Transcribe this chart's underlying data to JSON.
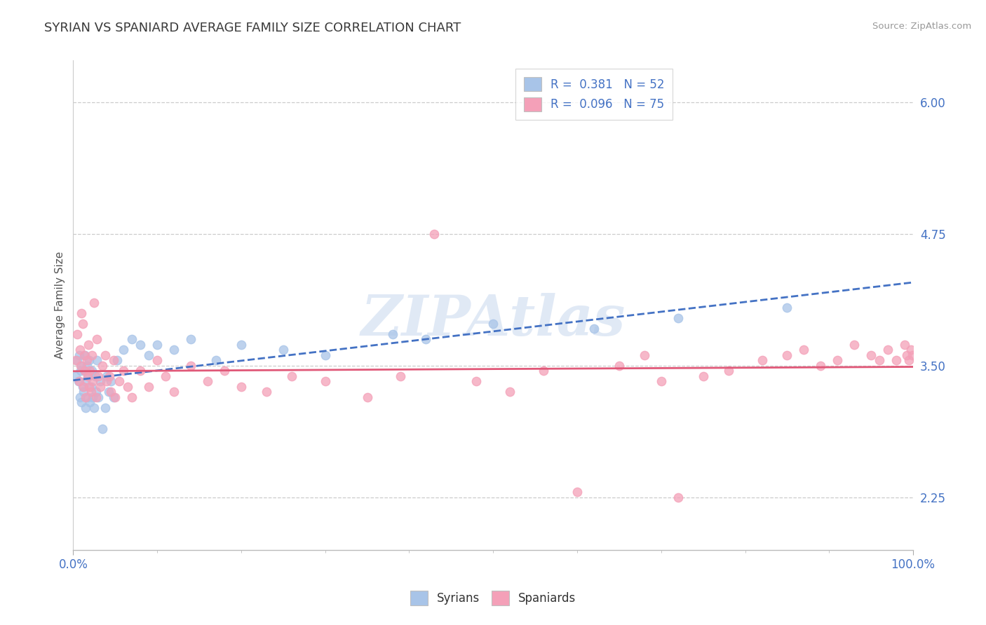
{
  "title": "SYRIAN VS SPANIARD AVERAGE FAMILY SIZE CORRELATION CHART",
  "source": "Source: ZipAtlas.com",
  "ylabel": "Average Family Size",
  "xlim": [
    0.0,
    1.0
  ],
  "ylim": [
    1.75,
    6.4
  ],
  "yticks": [
    2.25,
    3.5,
    4.75,
    6.0
  ],
  "xticks": [
    0.0,
    1.0
  ],
  "xticklabels": [
    "0.0%",
    "100.0%"
  ],
  "yticklabels": [
    "2.25",
    "3.50",
    "4.75",
    "6.00"
  ],
  "title_color": "#3a3a3a",
  "title_fontsize": 13,
  "axis_color": "#4472c4",
  "watermark": "ZIPAtlas",
  "syrian_color": "#a8c4e8",
  "spaniard_color": "#f4a0b8",
  "syrian_line_color": "#4472c4",
  "spaniard_line_color": "#e05878",
  "syrians_x": [
    0.003,
    0.005,
    0.006,
    0.007,
    0.008,
    0.009,
    0.01,
    0.01,
    0.011,
    0.012,
    0.013,
    0.014,
    0.015,
    0.015,
    0.016,
    0.017,
    0.018,
    0.019,
    0.02,
    0.021,
    0.022,
    0.023,
    0.025,
    0.026,
    0.027,
    0.028,
    0.03,
    0.032,
    0.035,
    0.038,
    0.04,
    0.042,
    0.045,
    0.048,
    0.052,
    0.06,
    0.07,
    0.08,
    0.09,
    0.1,
    0.12,
    0.14,
    0.17,
    0.2,
    0.25,
    0.3,
    0.38,
    0.42,
    0.5,
    0.62,
    0.72,
    0.85
  ],
  "syrians_y": [
    3.4,
    3.55,
    3.35,
    3.6,
    3.2,
    3.45,
    3.15,
    3.5,
    3.3,
    3.25,
    3.45,
    3.6,
    3.1,
    3.35,
    3.5,
    3.2,
    3.4,
    3.55,
    3.15,
    3.3,
    3.45,
    3.2,
    3.1,
    3.4,
    3.25,
    3.55,
    3.2,
    3.35,
    2.9,
    3.1,
    3.4,
    3.25,
    3.35,
    3.2,
    3.55,
    3.65,
    3.75,
    3.7,
    3.6,
    3.7,
    3.65,
    3.75,
    3.55,
    3.7,
    3.65,
    3.6,
    3.8,
    3.75,
    3.9,
    3.85,
    3.95,
    4.05
  ],
  "spaniards_x": [
    0.003,
    0.005,
    0.007,
    0.008,
    0.009,
    0.01,
    0.011,
    0.012,
    0.013,
    0.014,
    0.015,
    0.016,
    0.017,
    0.018,
    0.019,
    0.02,
    0.021,
    0.022,
    0.023,
    0.025,
    0.027,
    0.028,
    0.03,
    0.032,
    0.035,
    0.038,
    0.04,
    0.043,
    0.045,
    0.048,
    0.05,
    0.055,
    0.06,
    0.065,
    0.07,
    0.08,
    0.09,
    0.1,
    0.11,
    0.12,
    0.14,
    0.16,
    0.18,
    0.2,
    0.23,
    0.26,
    0.3,
    0.35,
    0.39,
    0.43,
    0.48,
    0.52,
    0.56,
    0.6,
    0.65,
    0.68,
    0.7,
    0.72,
    0.75,
    0.78,
    0.82,
    0.85,
    0.87,
    0.89,
    0.91,
    0.93,
    0.95,
    0.96,
    0.97,
    0.98,
    0.99,
    0.992,
    0.995,
    0.997,
    0.999
  ],
  "spaniards_y": [
    3.55,
    3.8,
    3.35,
    3.65,
    3.5,
    4.0,
    3.9,
    3.3,
    3.6,
    3.45,
    3.2,
    3.55,
    3.4,
    3.7,
    3.3,
    3.45,
    3.25,
    3.6,
    3.35,
    4.1,
    3.2,
    3.75,
    3.4,
    3.3,
    3.5,
    3.6,
    3.35,
    3.4,
    3.25,
    3.55,
    3.2,
    3.35,
    3.45,
    3.3,
    3.2,
    3.45,
    3.3,
    3.55,
    3.4,
    3.25,
    3.5,
    3.35,
    3.45,
    3.3,
    3.25,
    3.4,
    3.35,
    3.2,
    3.4,
    4.75,
    3.35,
    3.25,
    3.45,
    2.3,
    3.5,
    3.6,
    3.35,
    2.25,
    3.4,
    3.45,
    3.55,
    3.6,
    3.65,
    3.5,
    3.55,
    3.7,
    3.6,
    3.55,
    3.65,
    3.55,
    3.7,
    3.6,
    3.55,
    3.65,
    3.6
  ]
}
